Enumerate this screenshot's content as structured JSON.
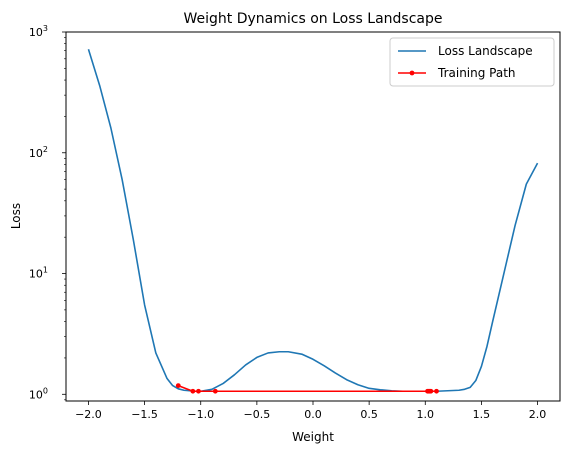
{
  "chart_data": {
    "type": "line",
    "title": "Weight Dynamics on Loss Landscape",
    "xlabel": "Weight",
    "ylabel": "Loss",
    "yscale": "log",
    "xlim": [
      -2.2,
      2.2
    ],
    "ylim": [
      0.88,
      1000
    ],
    "xticks": [
      -2.0,
      -1.5,
      -1.0,
      -0.5,
      0.0,
      0.5,
      1.0,
      1.5,
      2.0
    ],
    "xtick_labels": [
      "−2.0",
      "−1.5",
      "−1.0",
      "−0.5",
      "0.0",
      "0.5",
      "1.0",
      "1.5",
      "2.0"
    ],
    "yticks_major": [
      1,
      10,
      100,
      1000
    ],
    "ytick_base": "10",
    "ytick_exponents": [
      "0",
      "1",
      "2",
      "3"
    ],
    "grid": false,
    "legend_position": "top-right",
    "series": [
      {
        "name": "Loss Landscape",
        "color": "#1f77b4",
        "marker": "none",
        "x": [
          -2.0,
          -1.9,
          -1.8,
          -1.7,
          -1.6,
          -1.5,
          -1.4,
          -1.3,
          -1.25,
          -1.2,
          -1.15,
          -1.1,
          -1.05,
          -1.0,
          -0.9,
          -0.8,
          -0.7,
          -0.6,
          -0.5,
          -0.4,
          -0.3,
          -0.22,
          -0.1,
          0.0,
          0.1,
          0.2,
          0.3,
          0.4,
          0.5,
          0.6,
          0.7,
          0.8,
          0.9,
          1.0,
          1.1,
          1.2,
          1.3,
          1.35,
          1.4,
          1.45,
          1.5,
          1.55,
          1.6,
          1.7,
          1.8,
          1.9,
          2.0
        ],
        "y": [
          720,
          360,
          160,
          60,
          19,
          5.5,
          2.2,
          1.35,
          1.18,
          1.11,
          1.08,
          1.07,
          1.06,
          1.06,
          1.1,
          1.23,
          1.45,
          1.75,
          2.02,
          2.2,
          2.25,
          2.25,
          2.15,
          1.95,
          1.72,
          1.5,
          1.32,
          1.2,
          1.12,
          1.09,
          1.07,
          1.06,
          1.06,
          1.06,
          1.06,
          1.07,
          1.08,
          1.1,
          1.14,
          1.3,
          1.7,
          2.5,
          4.0,
          10.0,
          25.0,
          55.0,
          82.0
        ]
      },
      {
        "name": "Training Path",
        "color": "#ff0000",
        "marker": "circle",
        "x": [
          -1.2,
          -1.07,
          -1.02,
          -0.87,
          1.02,
          1.03,
          1.04,
          1.05,
          1.1
        ],
        "y": [
          1.18,
          1.06,
          1.06,
          1.06,
          1.06,
          1.06,
          1.06,
          1.06,
          1.06
        ]
      }
    ]
  }
}
